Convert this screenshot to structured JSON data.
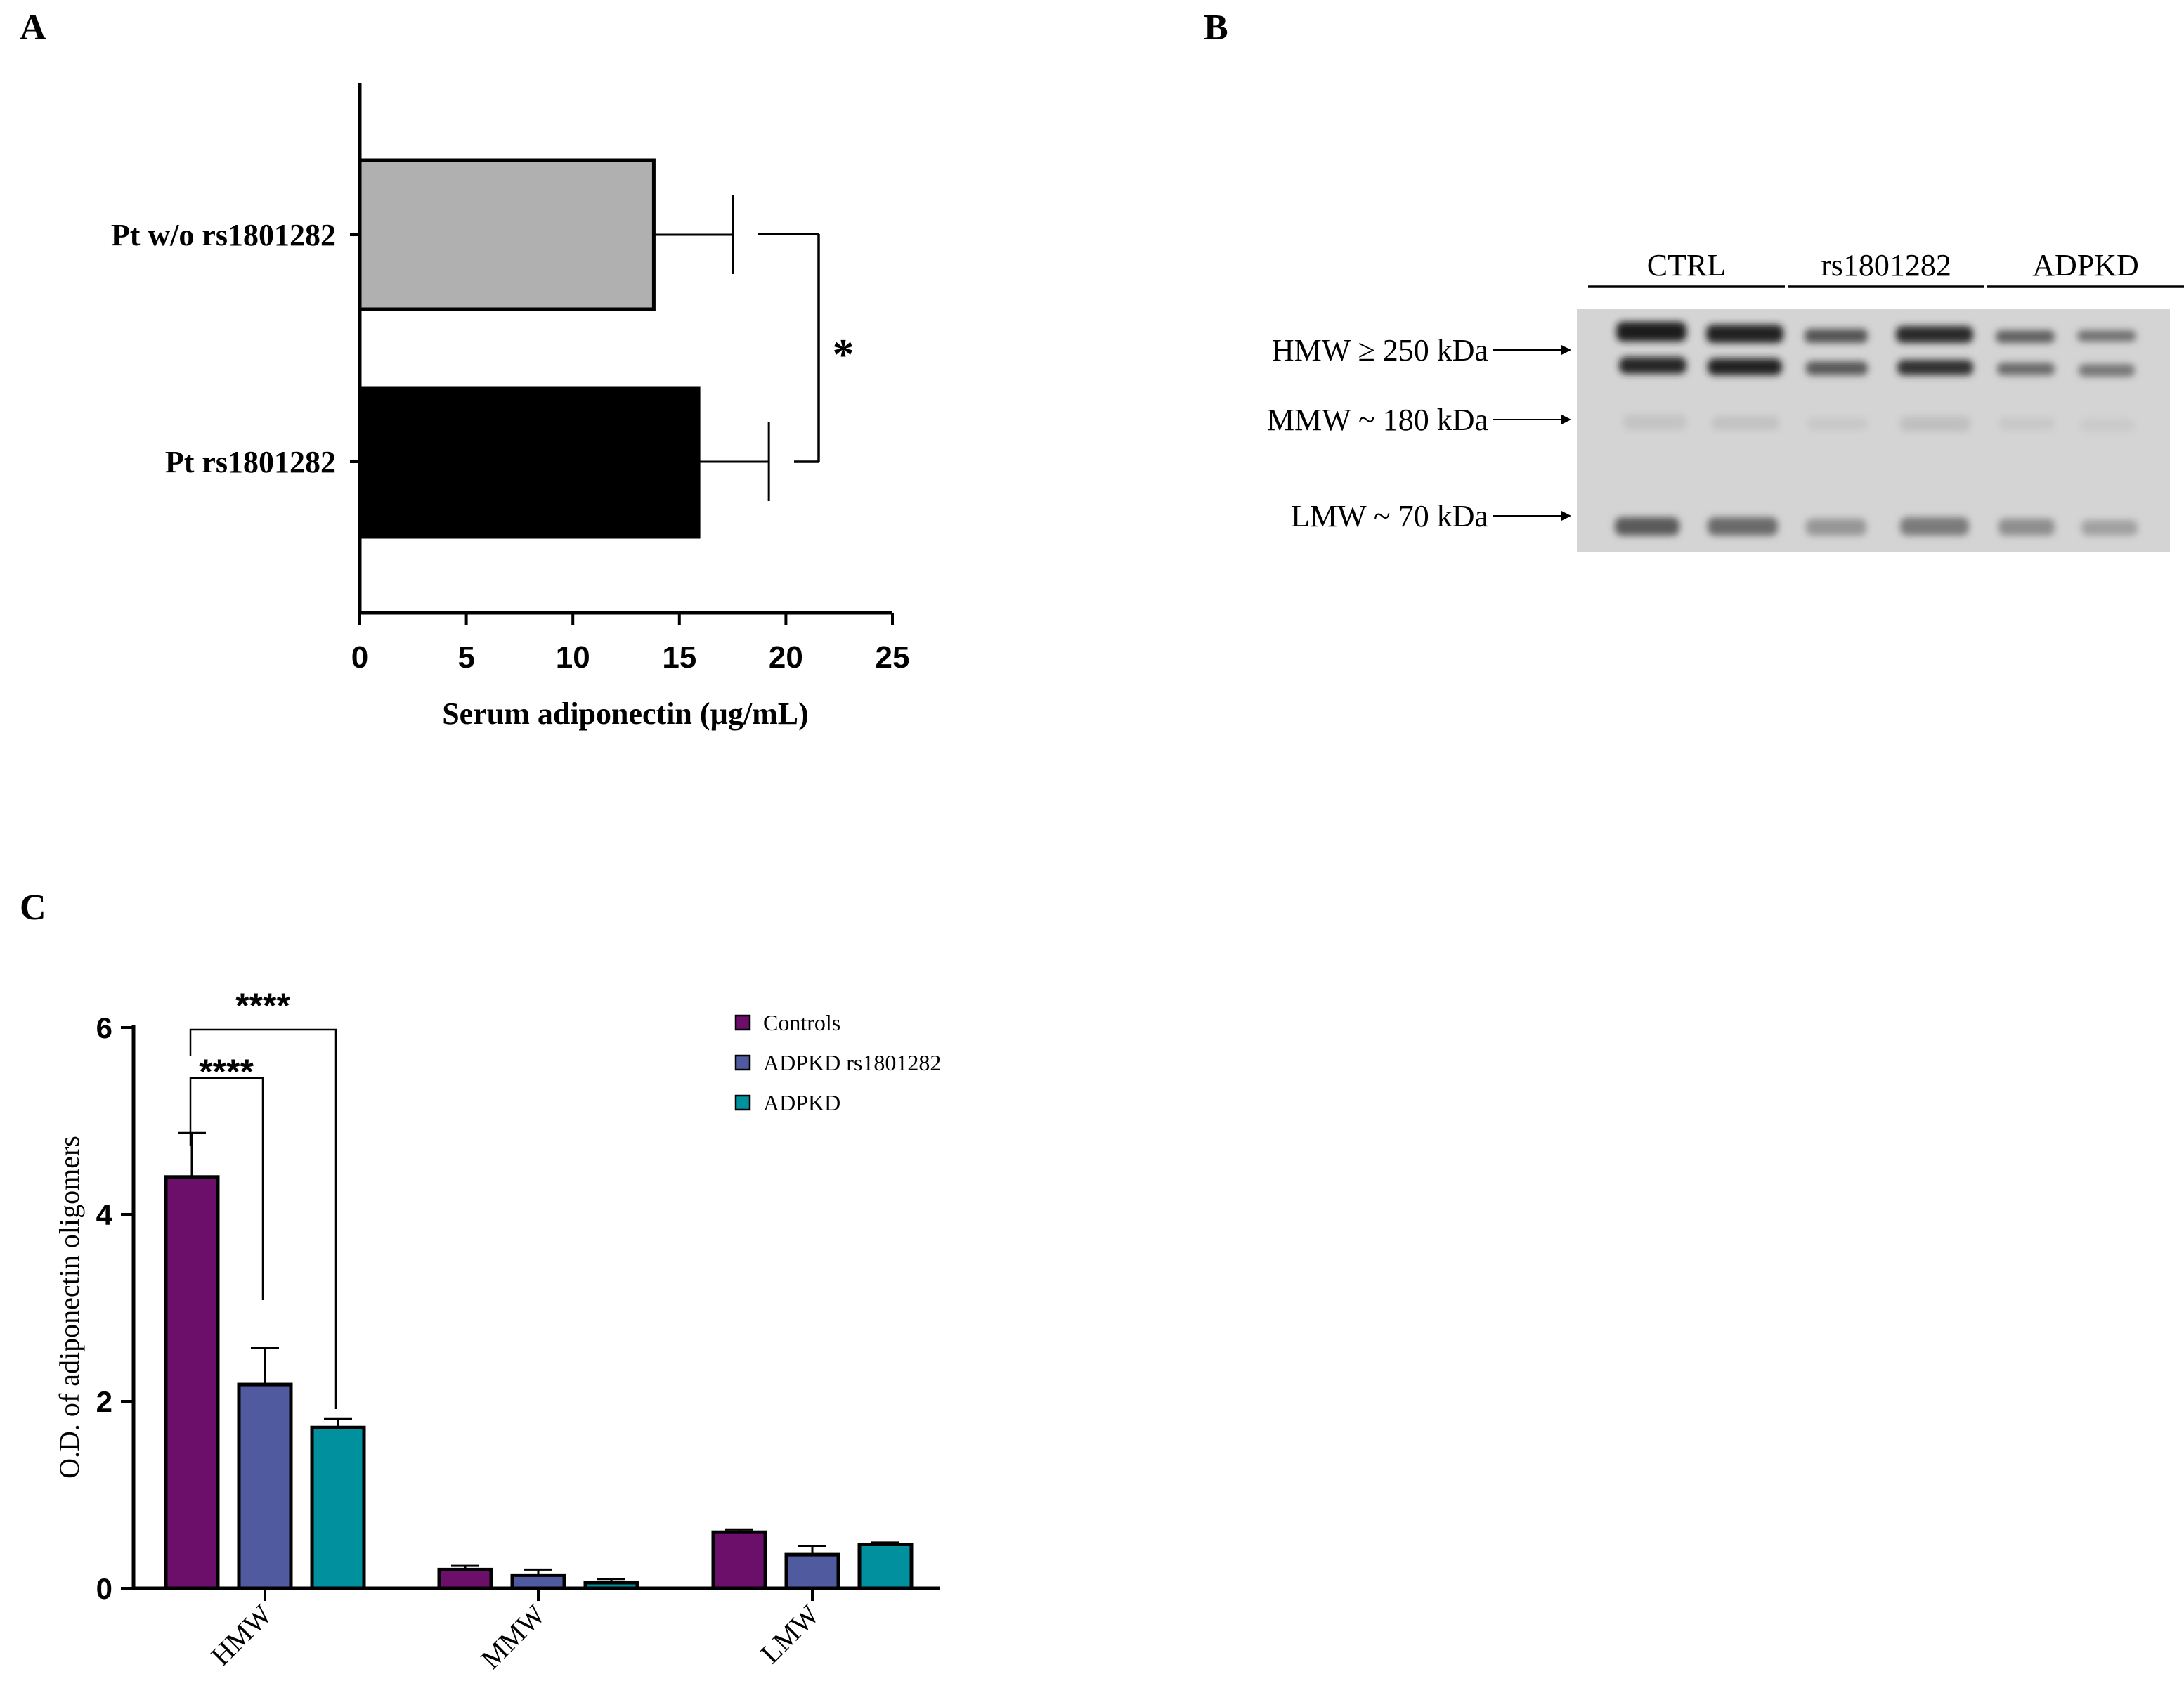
{
  "panels": {
    "a": "A",
    "b": "B",
    "c": "C"
  },
  "chart_data": [
    {
      "type": "bar",
      "orientation": "horizontal",
      "categories": [
        "Pt w/o rs1801282",
        "Pt rs1801282"
      ],
      "values": [
        13.8,
        15.9
      ],
      "errors": [
        3.7,
        3.3
      ],
      "colors": [
        "#b0b0b0",
        "#000000"
      ],
      "xlabel": "Serum adiponectin (µg/mL)",
      "xlim": [
        0,
        25
      ],
      "xticks": [
        "0",
        "5",
        "10",
        "15",
        "20",
        "25"
      ],
      "significance": "*"
    },
    {
      "type": "blot",
      "lanes": [
        "CTRL",
        "rs1801282",
        "ADPKD"
      ],
      "bands": [
        {
          "label": "HMW ≥ 250 kDa"
        },
        {
          "label": "MMW ~ 180 kDa"
        },
        {
          "label": "LMW ~ 70 kDa"
        }
      ]
    },
    {
      "type": "bar",
      "categories": [
        "HMW",
        "MMW",
        "LMW"
      ],
      "series": [
        {
          "name": "Controls",
          "color": "#6b0f6b",
          "values": [
            4.4,
            0.2,
            0.6
          ],
          "errors": [
            0.47,
            0.04,
            0.03
          ]
        },
        {
          "name": "ADPKD rs1801282",
          "color": "#4f5b9e",
          "values": [
            2.18,
            0.14,
            0.36
          ],
          "errors": [
            0.39,
            0.06,
            0.09
          ]
        },
        {
          "name": "ADPKD",
          "color": "#00909e",
          "values": [
            1.72,
            0.06,
            0.47
          ],
          "errors": [
            0.09,
            0.04,
            0.02
          ]
        }
      ],
      "ylabel": "O.D. of adiponectin oligomers",
      "ylim": [
        0,
        6
      ],
      "yticks": [
        "0",
        "2",
        "4",
        "6"
      ],
      "significance": [
        "****",
        "****"
      ]
    }
  ]
}
